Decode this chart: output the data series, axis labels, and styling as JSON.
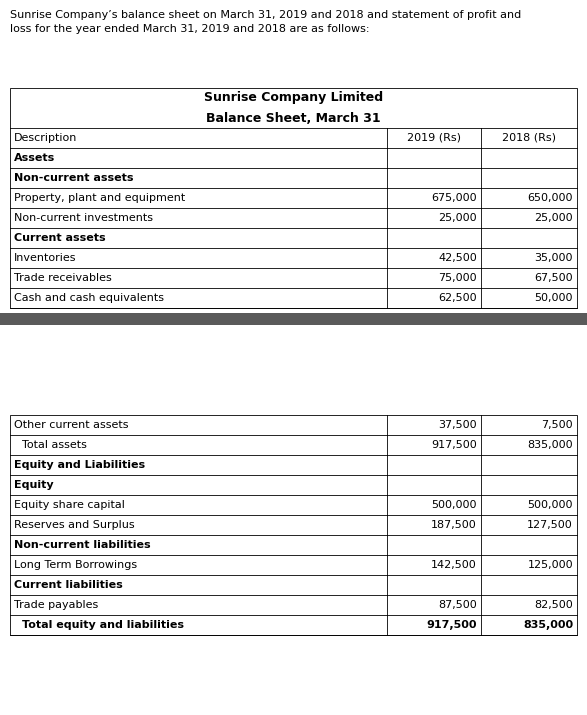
{
  "intro_text_line1": "Sunrise Company’s balance sheet on March 31, 2019 and 2018 and statement of profit and",
  "intro_text_line2": "loss for the year ended March 31, 2019 and 2018 are as follows:",
  "table_title_line1": "Sunrise Company Limited",
  "table_title_line2": "Balance Sheet, March 31",
  "col_headers": [
    "Description",
    "2019 (Rs)",
    "2018 (Rs)"
  ],
  "top_rows": [
    {
      "label": "Assets",
      "val2019": "",
      "val2018": "",
      "bold": true,
      "indent": false
    },
    {
      "label": "Non-current assets",
      "val2019": "",
      "val2018": "",
      "bold": true,
      "indent": false
    },
    {
      "label": "Property, plant and equipment",
      "val2019": "675,000",
      "val2018": "650,000",
      "bold": false,
      "indent": false
    },
    {
      "label": "Non-current investments",
      "val2019": "25,000",
      "val2018": "25,000",
      "bold": false,
      "indent": false
    },
    {
      "label": "Current assets",
      "val2019": "",
      "val2018": "",
      "bold": true,
      "indent": false
    },
    {
      "label": "Inventories",
      "val2019": "42,500",
      "val2018": "35,000",
      "bold": false,
      "indent": false
    },
    {
      "label": "Trade receivables",
      "val2019": "75,000",
      "val2018": "67,500",
      "bold": false,
      "indent": false
    },
    {
      "label": "Cash and cash equivalents",
      "val2019": "62,500",
      "val2018": "50,000",
      "bold": false,
      "indent": false
    }
  ],
  "bot_rows": [
    {
      "label": "Other current assets",
      "val2019": "37,500",
      "val2018": "7,500",
      "bold": false,
      "indent": false
    },
    {
      "label": "Total assets",
      "val2019": "917,500",
      "val2018": "835,000",
      "bold": false,
      "indent": true
    },
    {
      "label": "Equity and Liabilities",
      "val2019": "",
      "val2018": "",
      "bold": true,
      "indent": false
    },
    {
      "label": "Equity",
      "val2019": "",
      "val2018": "",
      "bold": true,
      "indent": false
    },
    {
      "label": "Equity share capital",
      "val2019": "500,000",
      "val2018": "500,000",
      "bold": false,
      "indent": false
    },
    {
      "label": "Reserves and Surplus",
      "val2019": "187,500",
      "val2018": "127,500",
      "bold": false,
      "indent": false
    },
    {
      "label": "Non-current liabilities",
      "val2019": "",
      "val2018": "",
      "bold": true,
      "indent": false
    },
    {
      "label": "Long Term Borrowings",
      "val2019": "142,500",
      "val2018": "125,000",
      "bold": false,
      "indent": false
    },
    {
      "label": "Current liabilities",
      "val2019": "",
      "val2018": "",
      "bold": true,
      "indent": false
    },
    {
      "label": "Trade payables",
      "val2019": "87,500",
      "val2018": "82,500",
      "bold": false,
      "indent": false
    },
    {
      "label": "Total equity and liabilities",
      "val2019": "917,500",
      "val2018": "835,000",
      "bold": true,
      "indent": true
    }
  ],
  "divider_color": "#5a5a5a",
  "border_color": "#000000",
  "text_color": "#000000",
  "bg_color": "#ffffff",
  "font_size": 8.0,
  "title_font_size": 9.0
}
